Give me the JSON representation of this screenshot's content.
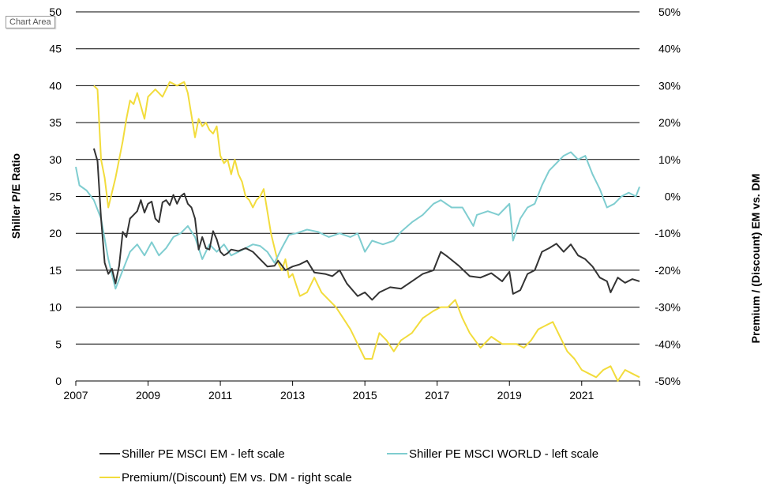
{
  "tooltip": "Chart Area",
  "chart_data": {
    "type": "line",
    "title": "",
    "ylabel": "Shiller P/E Ratio",
    "y2label": "Premium / (Discount) EM vs. DM",
    "xlim": [
      2007,
      2022.6
    ],
    "ylim": [
      0,
      50
    ],
    "y2lim": [
      -50,
      50
    ],
    "x_ticks": [
      "2007",
      "2009",
      "2011",
      "2013",
      "2015",
      "2017",
      "2019",
      "2021"
    ],
    "y_ticks": [
      "0",
      "5",
      "10",
      "15",
      "20",
      "25",
      "30",
      "35",
      "40",
      "45",
      "50"
    ],
    "y2_ticks": [
      "-50%",
      "-40%",
      "-30%",
      "-20%",
      "-10%",
      "0%",
      "10%",
      "20%",
      "30%",
      "40%",
      "50%"
    ],
    "grid": true,
    "legend_position": "bottom",
    "series": [
      {
        "name": "Shiller PE MSCI EM - left scale",
        "axis": "left",
        "color": "#333333",
        "x": [
          2007.5,
          2007.6,
          2007.7,
          2007.8,
          2007.9,
          2008.0,
          2008.1,
          2008.2,
          2008.3,
          2008.4,
          2008.5,
          2008.6,
          2008.7,
          2008.8,
          2008.9,
          2009.0,
          2009.1,
          2009.2,
          2009.3,
          2009.4,
          2009.5,
          2009.6,
          2009.7,
          2009.8,
          2009.9,
          2010.0,
          2010.1,
          2010.2,
          2010.3,
          2010.4,
          2010.5,
          2010.6,
          2010.7,
          2010.8,
          2010.9,
          2011.0,
          2011.1,
          2011.2,
          2011.3,
          2011.5,
          2011.7,
          2011.9,
          2012.1,
          2012.3,
          2012.5,
          2012.6,
          2012.8,
          2013.0,
          2013.2,
          2013.4,
          2013.6,
          2013.9,
          2014.1,
          2014.3,
          2014.5,
          2014.8,
          2015.0,
          2015.2,
          2015.4,
          2015.7,
          2016.0,
          2016.3,
          2016.6,
          2016.9,
          2017.1,
          2017.3,
          2017.6,
          2017.9,
          2018.2,
          2018.5,
          2018.8,
          2019.0,
          2019.1,
          2019.3,
          2019.5,
          2019.7,
          2019.9,
          2020.1,
          2020.3,
          2020.5,
          2020.7,
          2020.9,
          2021.1,
          2021.3,
          2021.5,
          2021.7,
          2021.8,
          2022.0,
          2022.2,
          2022.4,
          2022.6
        ],
        "values": [
          31.5,
          29.8,
          22.0,
          16.0,
          14.5,
          15.2,
          13.2,
          15.6,
          20.2,
          19.5,
          22.0,
          22.5,
          23.0,
          24.5,
          22.8,
          24.0,
          24.3,
          22.0,
          21.5,
          24.2,
          24.5,
          23.8,
          25.2,
          24.0,
          25.0,
          25.4,
          24.0,
          23.5,
          22.0,
          17.8,
          19.5,
          18.0,
          17.8,
          20.3,
          19.2,
          17.5,
          17.0,
          17.3,
          17.8,
          17.6,
          18.0,
          17.5,
          16.5,
          15.5,
          15.6,
          16.3,
          15.0,
          15.5,
          15.8,
          16.3,
          14.7,
          14.5,
          14.2,
          15.0,
          13.2,
          11.5,
          12.0,
          11.0,
          12.0,
          12.7,
          12.5,
          13.5,
          14.5,
          15.0,
          17.5,
          16.8,
          15.6,
          14.2,
          14.0,
          14.6,
          13.5,
          14.8,
          11.8,
          12.3,
          14.5,
          15.0,
          17.5,
          18.0,
          18.6,
          17.5,
          18.5,
          17.0,
          16.5,
          15.5,
          14.0,
          13.5,
          12.0,
          14.0,
          13.3,
          13.8,
          13.5
        ]
      },
      {
        "name": "Shiller PE MSCI WORLD - left scale",
        "axis": "left",
        "color": "#7fcdd0",
        "x": [
          2007.0,
          2007.1,
          2007.3,
          2007.5,
          2007.7,
          2007.9,
          2008.1,
          2008.3,
          2008.5,
          2008.7,
          2008.9,
          2009.1,
          2009.3,
          2009.5,
          2009.7,
          2009.9,
          2010.1,
          2010.3,
          2010.5,
          2010.7,
          2010.9,
          2011.1,
          2011.3,
          2011.5,
          2011.7,
          2011.9,
          2012.1,
          2012.3,
          2012.5,
          2012.7,
          2012.9,
          2013.1,
          2013.4,
          2013.7,
          2014.0,
          2014.3,
          2014.6,
          2014.8,
          2015.0,
          2015.2,
          2015.5,
          2015.8,
          2016.0,
          2016.3,
          2016.6,
          2016.9,
          2017.1,
          2017.4,
          2017.7,
          2018.0,
          2018.1,
          2018.4,
          2018.7,
          2018.9,
          2019.0,
          2019.1,
          2019.3,
          2019.5,
          2019.7,
          2019.9,
          2020.1,
          2020.3,
          2020.5,
          2020.7,
          2020.9,
          2021.1,
          2021.3,
          2021.5,
          2021.7,
          2021.9,
          2022.1,
          2022.3,
          2022.5,
          2022.6
        ],
        "values": [
          29.0,
          26.5,
          25.8,
          24.5,
          22.0,
          16.5,
          12.5,
          15.0,
          17.5,
          18.5,
          17.0,
          18.8,
          17.0,
          18.0,
          19.5,
          20.0,
          21.0,
          19.5,
          16.5,
          18.5,
          17.5,
          18.5,
          17.0,
          17.5,
          18.0,
          18.5,
          18.3,
          17.5,
          16.0,
          18.0,
          19.8,
          20.0,
          20.5,
          20.2,
          19.5,
          20.0,
          19.5,
          20.0,
          17.5,
          19.0,
          18.5,
          19.0,
          20.2,
          21.5,
          22.5,
          24.0,
          24.5,
          23.5,
          23.5,
          21.0,
          22.5,
          23.0,
          22.5,
          23.5,
          24.0,
          19.0,
          22.0,
          23.5,
          24.0,
          26.5,
          28.5,
          29.5,
          30.5,
          31.0,
          30.0,
          30.5,
          28.0,
          26.0,
          23.5,
          24.0,
          25.0,
          25.5,
          25.0,
          26.3
        ]
      },
      {
        "name": "Premium/(Discount) EM vs. DM - right scale",
        "axis": "right",
        "color": "#f2dc3c",
        "x": [
          2007.5,
          2007.6,
          2007.7,
          2007.8,
          2007.9,
          2008.1,
          2008.3,
          2008.4,
          2008.5,
          2008.6,
          2008.7,
          2008.9,
          2009.0,
          2009.2,
          2009.4,
          2009.6,
          2009.8,
          2010.0,
          2010.1,
          2010.2,
          2010.3,
          2010.4,
          2010.5,
          2010.6,
          2010.7,
          2010.8,
          2010.9,
          2011.0,
          2011.1,
          2011.2,
          2011.3,
          2011.4,
          2011.5,
          2011.6,
          2011.7,
          2011.8,
          2011.9,
          2012.0,
          2012.1,
          2012.2,
          2012.3,
          2012.4,
          2012.5,
          2012.6,
          2012.7,
          2012.8,
          2012.9,
          2013.0,
          2013.2,
          2013.4,
          2013.6,
          2013.8,
          2014.0,
          2014.2,
          2014.4,
          2014.6,
          2014.8,
          2015.0,
          2015.2,
          2015.4,
          2015.6,
          2015.8,
          2016.0,
          2016.3,
          2016.6,
          2016.9,
          2017.1,
          2017.3,
          2017.5,
          2017.7,
          2017.9,
          2018.2,
          2018.5,
          2018.8,
          2019.0,
          2019.2,
          2019.4,
          2019.6,
          2019.8,
          2020.0,
          2020.2,
          2020.4,
          2020.6,
          2020.8,
          2021.0,
          2021.2,
          2021.4,
          2021.6,
          2021.8,
          2022.0,
          2022.2,
          2022.4,
          2022.6
        ],
        "values": [
          30,
          29,
          10,
          5,
          -3,
          5,
          15,
          21,
          26,
          25,
          28,
          21,
          27,
          29,
          27,
          31,
          30,
          31,
          28,
          22,
          16,
          21,
          19,
          20,
          18,
          17,
          19,
          11,
          9,
          10,
          6,
          10,
          6,
          4,
          0,
          -1,
          -3,
          -1,
          0,
          2,
          -4,
          -10,
          -14,
          -18,
          -20,
          -17,
          -22,
          -21,
          -27,
          -26,
          -22,
          -26,
          -28,
          -30,
          -33,
          -36,
          -40,
          -44,
          -44,
          -37,
          -39,
          -42,
          -39,
          -37,
          -33,
          -31,
          -30,
          -30,
          -28,
          -33,
          -37,
          -41,
          -38,
          -40,
          -40,
          -40,
          -41,
          -39,
          -36,
          -35,
          -34,
          -38,
          -42,
          -44,
          -47,
          -48,
          -49,
          -47,
          -46,
          -50,
          -47,
          -48,
          -49
        ]
      }
    ]
  }
}
